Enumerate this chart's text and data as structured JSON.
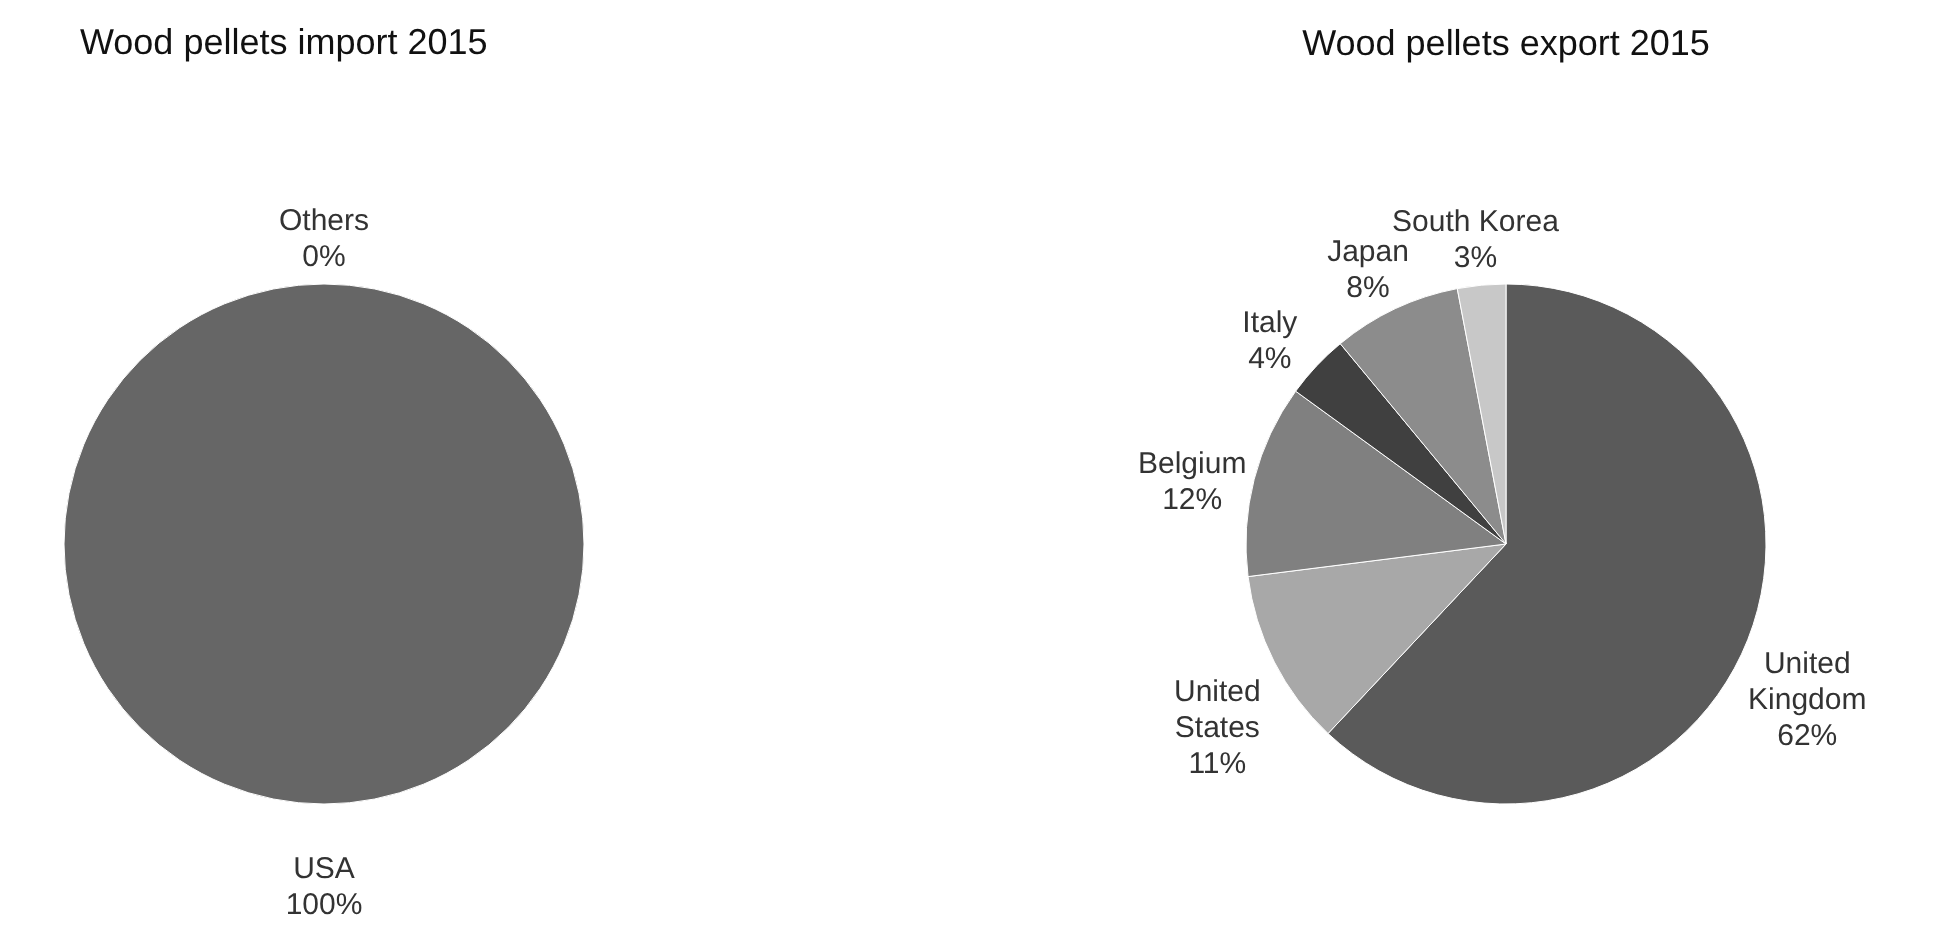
{
  "chart_data": [
    {
      "type": "pie",
      "title": "Wood pellets import 2015",
      "categories": [
        "Others",
        "USA"
      ],
      "values": [
        0,
        100
      ],
      "value_labels": [
        "0%",
        "100%"
      ],
      "colors": [
        "#b0b0b0",
        "#666666"
      ]
    },
    {
      "type": "pie",
      "title": "Wood pellets export 2015",
      "categories": [
        "United Kingdom",
        "United States",
        "Belgium",
        "Italy",
        "Japan",
        "South Korea"
      ],
      "values": [
        62,
        11,
        12,
        4,
        8,
        3
      ],
      "value_labels": [
        "62%",
        "11%",
        "12%",
        "4%",
        "8%",
        "3%"
      ],
      "colors": [
        "#5a5a5a",
        "#a8a8a8",
        "#808080",
        "#404040",
        "#8c8c8c",
        "#c8c8c8"
      ]
    }
  ]
}
